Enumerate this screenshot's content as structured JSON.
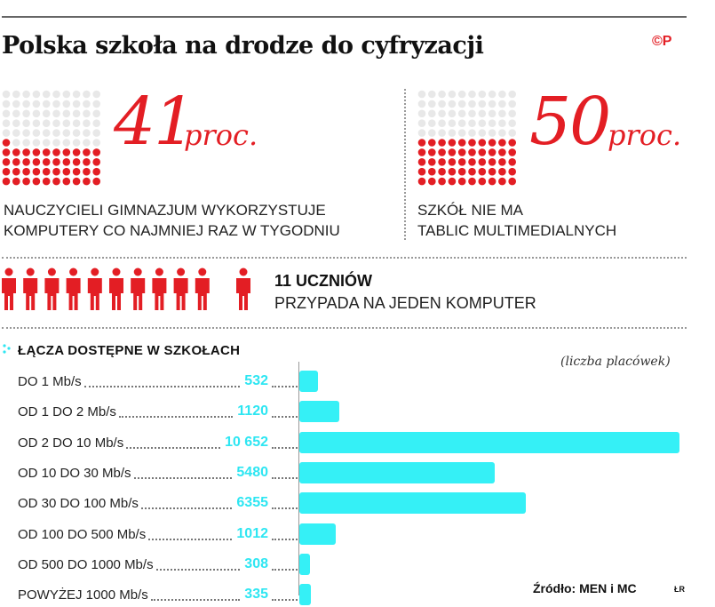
{
  "header": {
    "title": "Polska szkoła na drodze do cyfryzacji",
    "logo": "©P"
  },
  "stats": [
    {
      "value": "41",
      "unit": "proc.",
      "caption_line1": "NAUCZYCIELI GIMNAZJUM WYKORZYSTUJE",
      "caption_line2": "KOMPUTERY CO NAJMNIEJ RAZ W TYGODNIU",
      "filled_percent": 41
    },
    {
      "value": "50",
      "unit": "proc.",
      "caption_line1": "SZKÓŁ NIE MA",
      "caption_line2": "TABLIC MULTIMEDIALNYCH",
      "filled_percent": 50
    }
  ],
  "students": {
    "headline": "11 UCZNIÓW",
    "subline": "PRZYPADA NA JEDEN KOMPUTER",
    "count": 11
  },
  "colors": {
    "accent_red": "#e31e24",
    "bar_cyan": "#35f0f6",
    "value_cyan": "#2ee6f2",
    "grid_grey": "#e8e8e8"
  },
  "chart_data": {
    "type": "bar",
    "orientation": "horizontal",
    "title": "ŁĄCZA DOSTĘPNE W SZKOŁACH",
    "unit_note": "(liczba placówek)",
    "categories": [
      "DO 1 Mb/s",
      "OD 1 DO 2 Mb/s",
      "OD 2 DO 10 Mb/s",
      "OD 10 DO 30 Mb/s",
      "OD 30 DO 100 Mb/s",
      "OD 100 DO 500 Mb/s",
      "OD 500 DO 1000 Mb/s",
      "POWYŻEJ 1000 Mb/s"
    ],
    "values": [
      532,
      1120,
      10652,
      5480,
      6355,
      1012,
      308,
      335
    ],
    "value_labels": [
      "532",
      "1120",
      "10 652",
      "5480",
      "6355",
      "1012",
      "308",
      "335"
    ],
    "xlim": [
      0,
      10652
    ],
    "source": "Źródło: MEN i MC",
    "initials": "ŁR"
  }
}
